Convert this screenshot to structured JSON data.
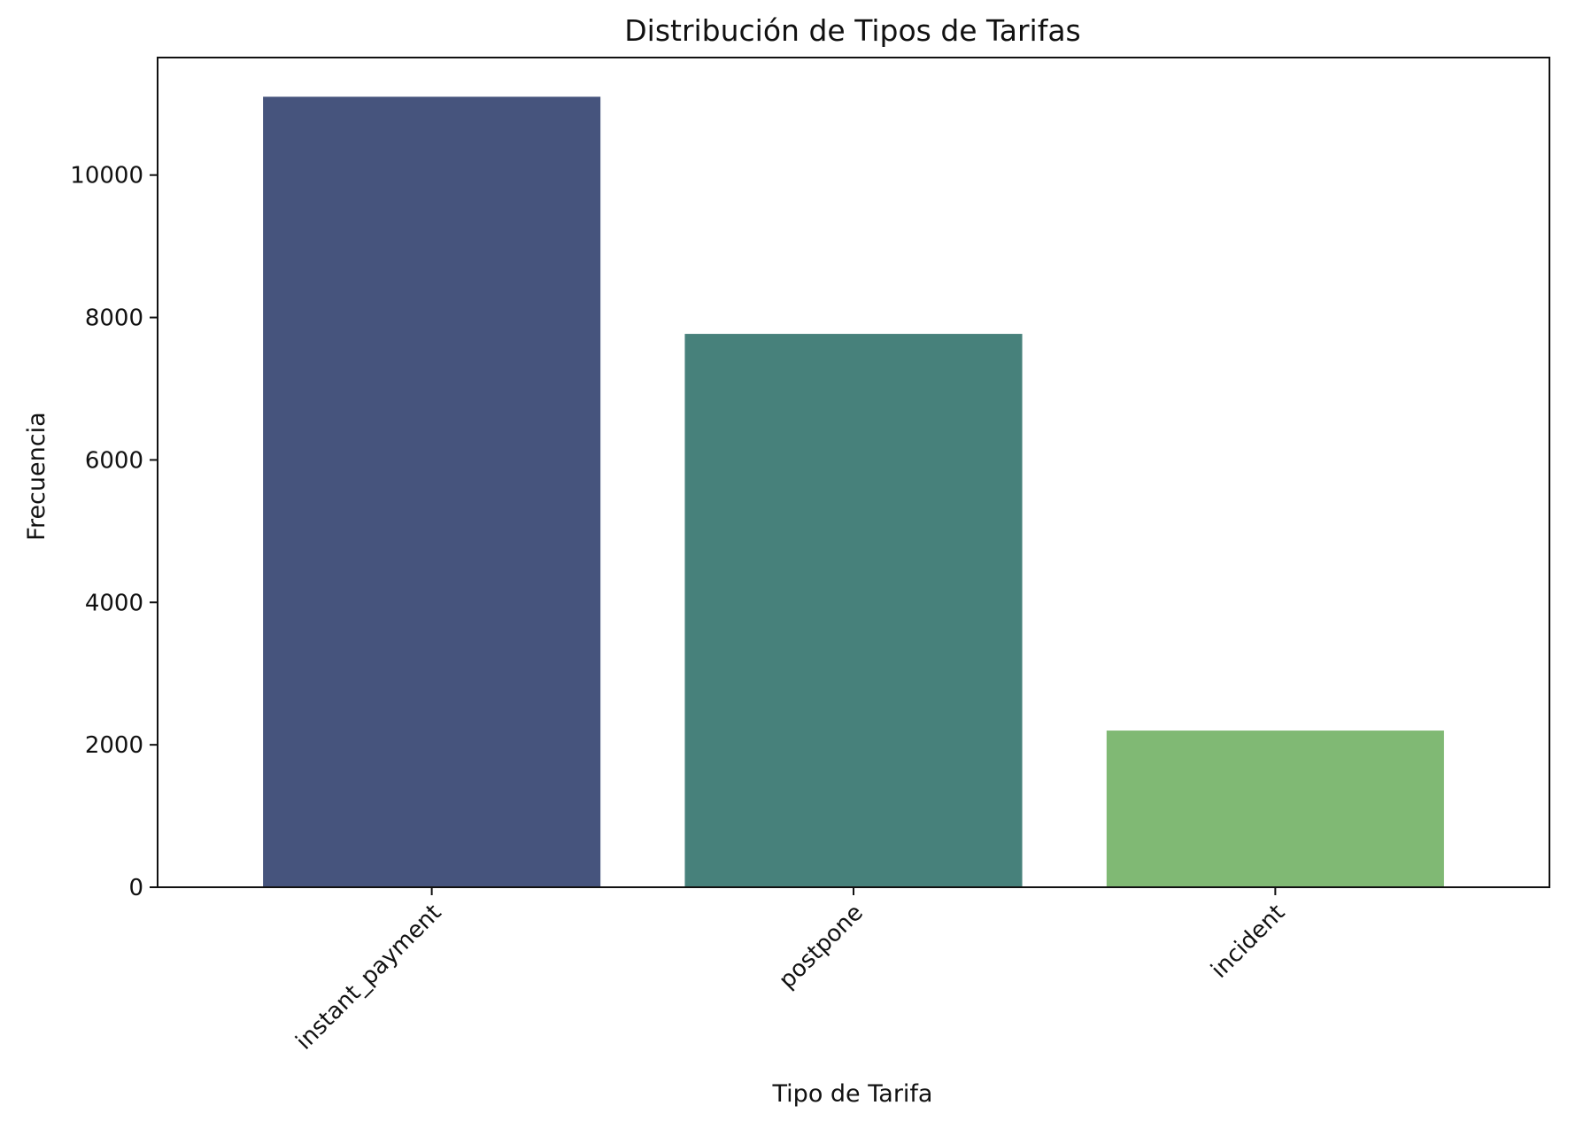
{
  "chart_data": {
    "type": "bar",
    "title": "Distribución de Tipos de Tarifas",
    "xlabel": "Tipo de Tarifa",
    "ylabel": "Frecuencia",
    "categories": [
      "instant_payment",
      "postpone",
      "incident"
    ],
    "values": [
      11100,
      7770,
      2200
    ],
    "colors": [
      "#46547d",
      "#47817b",
      "#80b974"
    ],
    "ylim": [
      0,
      11650
    ],
    "yticks": [
      0,
      2000,
      4000,
      6000,
      8000,
      10000
    ],
    "grid": false,
    "legend": "none"
  }
}
